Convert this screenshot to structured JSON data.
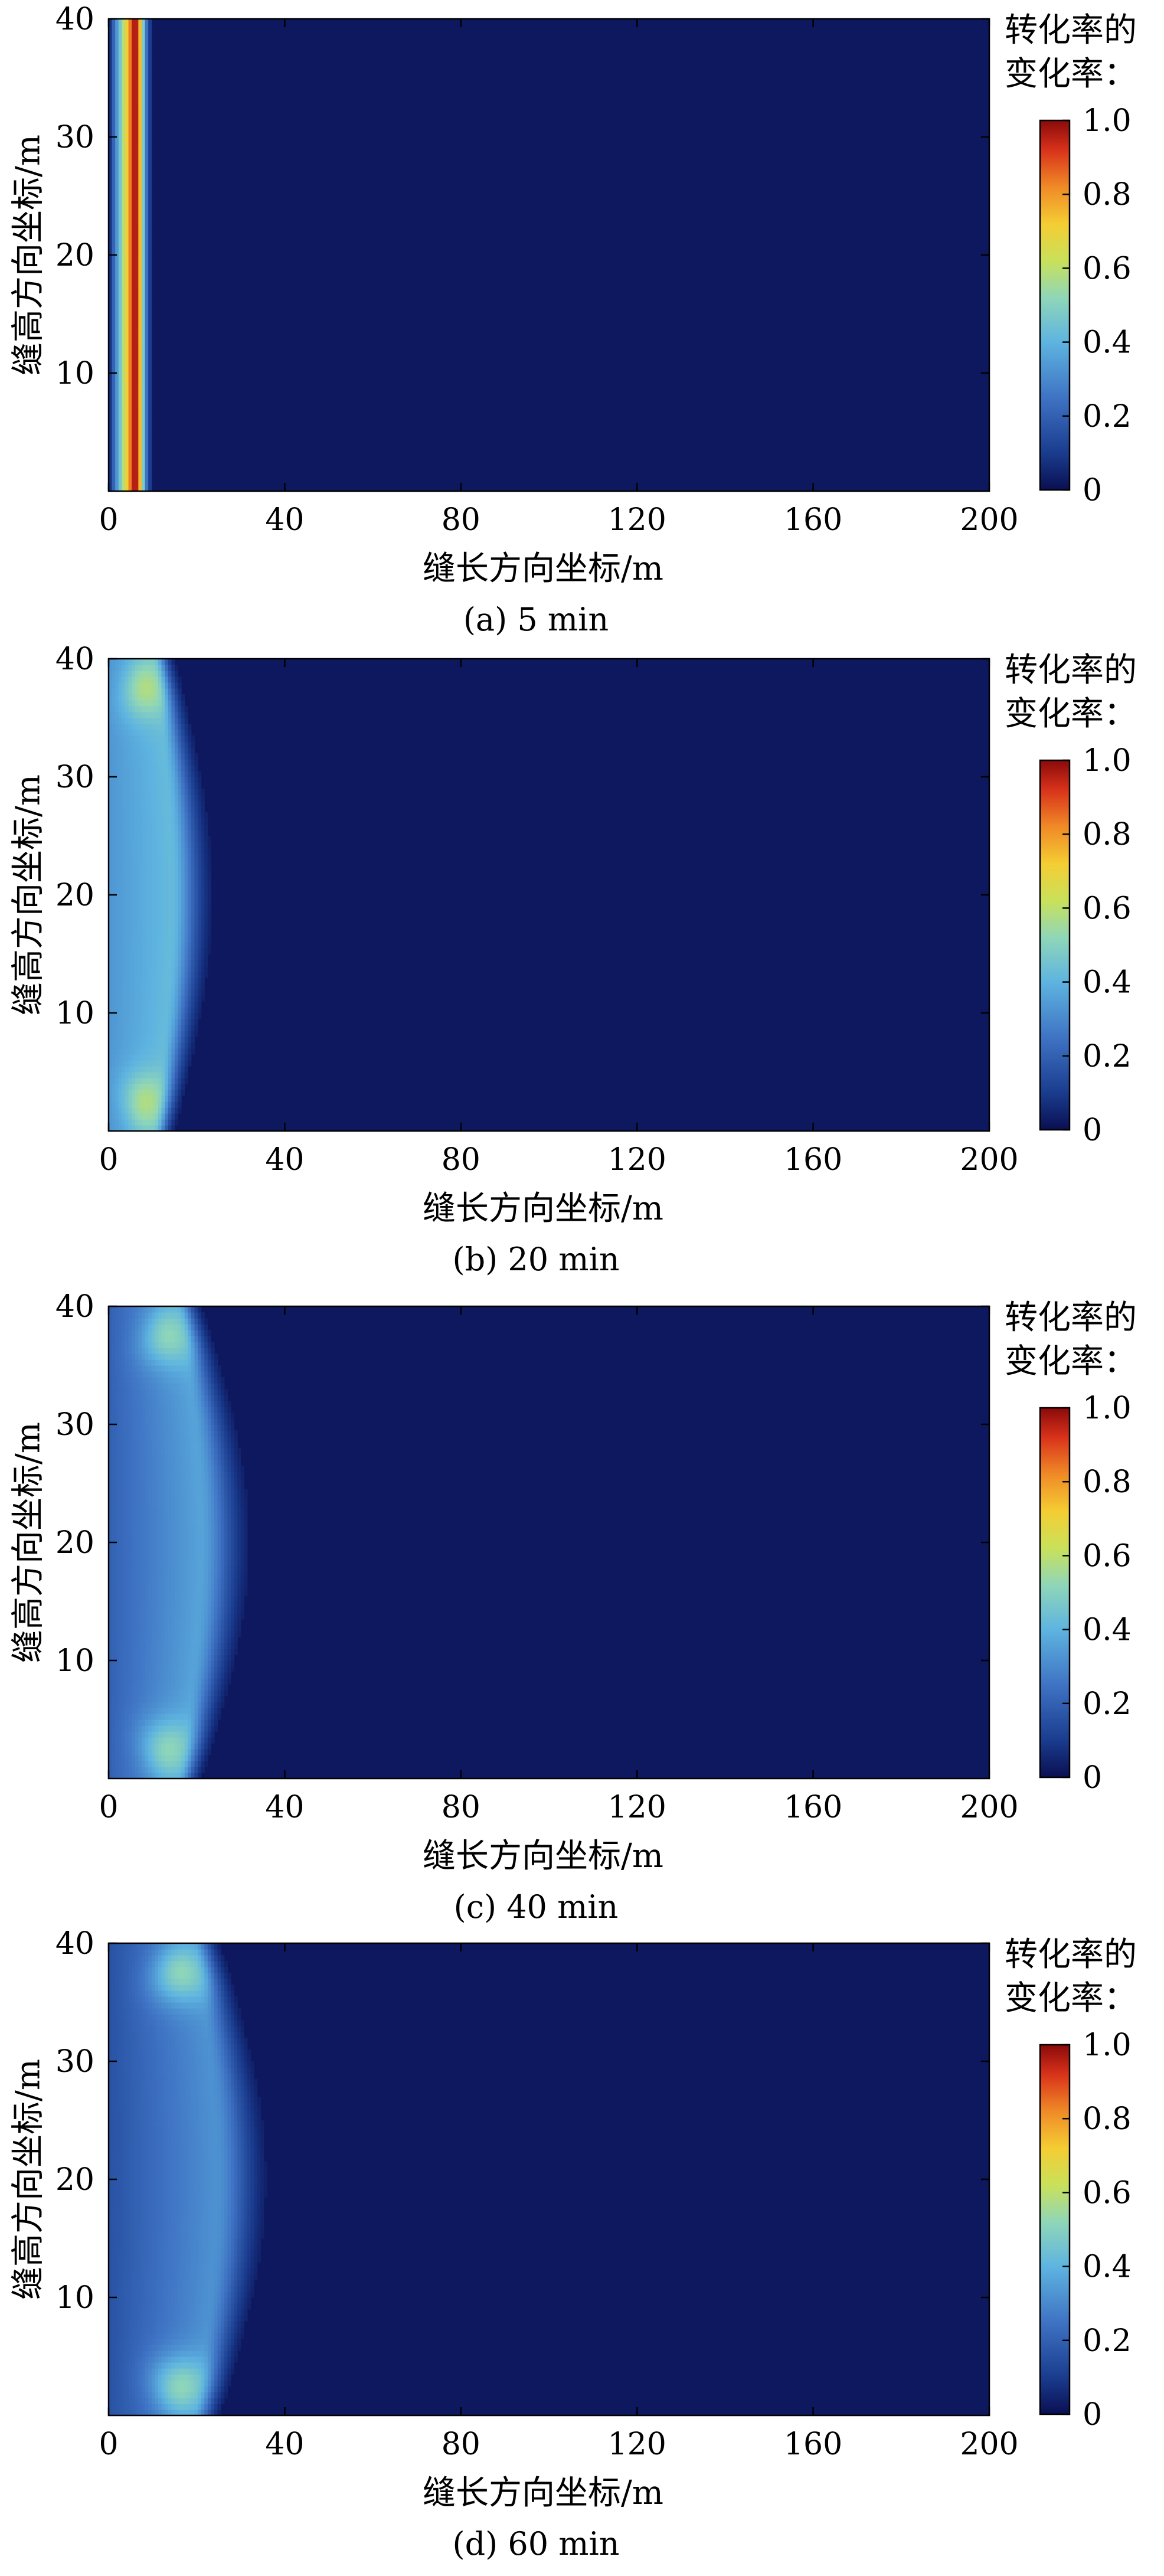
{
  "chart_data": [
    {
      "type": "heatmap",
      "caption": "(a) 5 min",
      "xlabel": "缝长方向坐标/m",
      "ylabel": "缝高方向坐标/m",
      "xlim": [
        0,
        200
      ],
      "ylim": [
        0,
        40
      ],
      "xticks": [
        0,
        40,
        80,
        120,
        160,
        200
      ],
      "yticks": [
        10,
        20,
        30,
        40
      ],
      "colorbar": {
        "title": [
          "转化率的",
          "变化率："
        ],
        "range": [
          0,
          1.0
        ],
        "ticks": [
          "1.0",
          "0.8",
          "0.6",
          "0.4",
          "0.2",
          "0"
        ]
      },
      "front": {
        "peak_x": 4.5,
        "center_depth": 2.5,
        "edge_depth": 2.5,
        "peak_value": 1.0,
        "tail_value": 0.02,
        "edge_value": 1.0
      }
    },
    {
      "type": "heatmap",
      "caption": "(b) 20 min",
      "xlabel": "缝长方向坐标/m",
      "ylabel": "缝高方向坐标/m",
      "xlim": [
        0,
        200
      ],
      "ylim": [
        0,
        40
      ],
      "xticks": [
        0,
        40,
        80,
        120,
        160,
        200
      ],
      "yticks": [
        10,
        20,
        30,
        40
      ],
      "colorbar": {
        "title": [
          "转化率的",
          "变化率："
        ],
        "range": [
          0,
          1.0
        ],
        "ticks": [
          "1.0",
          "0.8",
          "0.6",
          "0.4",
          "0.2",
          "0"
        ]
      },
      "front": {
        "peak_x": 8,
        "center_depth": 11,
        "edge_depth": 4,
        "peak_value": 0.42,
        "tail_value": 0.33,
        "edge_value": 0.6
      }
    },
    {
      "type": "heatmap",
      "caption": "(c) 40 min",
      "xlabel": "缝长方向坐标/m",
      "ylabel": "缝高方向坐标/m",
      "xlim": [
        0,
        200
      ],
      "ylim": [
        0,
        40
      ],
      "xticks": [
        0,
        40,
        80,
        120,
        160,
        200
      ],
      "yticks": [
        10,
        20,
        30,
        40
      ],
      "colorbar": {
        "title": [
          "转化率的",
          "变化率："
        ],
        "range": [
          0,
          1.0
        ],
        "ticks": [
          "1.0",
          "0.8",
          "0.6",
          "0.4",
          "0.2",
          "0"
        ]
      },
      "front": {
        "peak_x": 13,
        "center_depth": 14,
        "edge_depth": 5,
        "peak_value": 0.36,
        "tail_value": 0.2,
        "edge_value": 0.55
      }
    },
    {
      "type": "heatmap",
      "caption": "(d) 60 min",
      "xlabel": "缝长方向坐标/m",
      "ylabel": "缝高方向坐标/m",
      "xlim": [
        0,
        200
      ],
      "ylim": [
        0,
        40
      ],
      "xticks": [
        0,
        40,
        80,
        120,
        160,
        200
      ],
      "yticks": [
        10,
        20,
        30,
        40
      ],
      "colorbar": {
        "title": [
          "转化率的",
          "变化率："
        ],
        "range": [
          0,
          1.0
        ],
        "ticks": [
          "1.0",
          "0.8",
          "0.6",
          "0.4",
          "0.2",
          "0"
        ]
      },
      "front": {
        "peak_x": 16,
        "center_depth": 15,
        "edge_depth": 6,
        "peak_value": 0.32,
        "tail_value": 0.16,
        "edge_value": 0.55
      }
    }
  ]
}
